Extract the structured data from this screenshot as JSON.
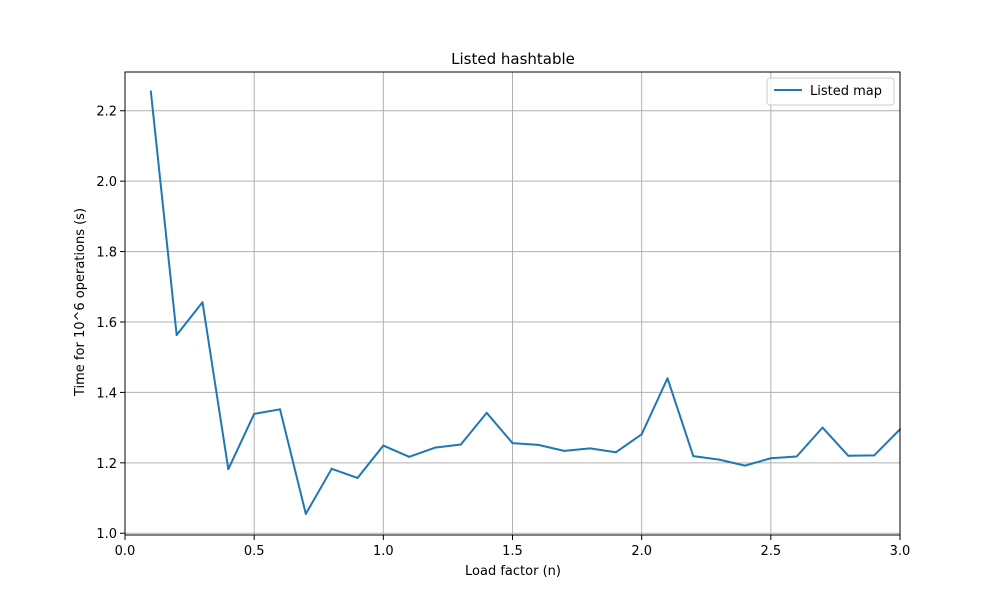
{
  "chart_data": {
    "type": "line",
    "title": "Listed hashtable",
    "xlabel": "Load factor (n)",
    "ylabel": "Time for 10^6 operations (s)",
    "xlim": [
      0.0,
      3.0
    ],
    "ylim": [
      0.995,
      2.31
    ],
    "xticks": [
      0.0,
      0.5,
      1.0,
      1.5,
      2.0,
      2.5,
      3.0
    ],
    "xtick_labels": [
      "0.0",
      "0.5",
      "1.0",
      "1.5",
      "2.0",
      "2.5",
      "3.0"
    ],
    "yticks": [
      1.0,
      1.2,
      1.4,
      1.6,
      1.8,
      2.0,
      2.2
    ],
    "ytick_labels": [
      "1.0",
      "1.2",
      "1.4",
      "1.6",
      "1.8",
      "2.0",
      "2.2"
    ],
    "grid": true,
    "legend": {
      "placement": "top-right"
    },
    "series": [
      {
        "name": "Listed map",
        "color": "#1f77b4",
        "x": [
          0.1,
          0.2,
          0.3,
          0.4,
          0.5,
          0.6,
          0.7,
          0.8,
          0.9,
          1.0,
          1.1,
          1.2,
          1.3,
          1.4,
          1.5,
          1.6,
          1.7,
          1.8,
          1.9,
          2.0,
          2.1,
          2.2,
          2.3,
          2.4,
          2.5,
          2.6,
          2.7,
          2.8,
          2.9,
          3.0
        ],
        "y": [
          2.255,
          1.563,
          1.656,
          1.182,
          1.339,
          1.352,
          1.055,
          1.183,
          1.157,
          1.249,
          1.217,
          1.243,
          1.252,
          1.342,
          1.256,
          1.251,
          1.234,
          1.241,
          1.23,
          1.281,
          1.44,
          1.219,
          1.209,
          1.192,
          1.213,
          1.218,
          1.3,
          1.22,
          1.221,
          1.295
        ]
      }
    ]
  }
}
